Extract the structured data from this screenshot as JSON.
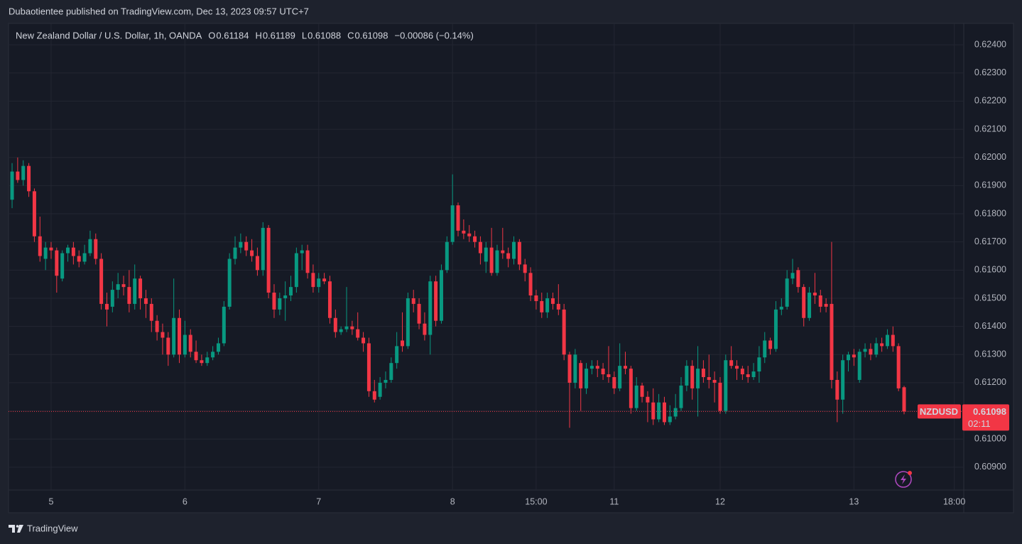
{
  "header": {
    "publisher": "Dubaotientee published on TradingView.com, Dec 13, 2023 09:57 UTC+7"
  },
  "footer": {
    "brand": "TradingView"
  },
  "chart_data": {
    "type": "candlestick",
    "title": "New Zealand Dollar / U.S. Dollar, 1h, OANDA",
    "legend_keys": [
      "O",
      "H",
      "L",
      "C"
    ],
    "change_label": "−0.00086 (−0.14%)",
    "symbol": "NZDUSD",
    "countdown": "02:11",
    "up_color": "#089981",
    "down_color": "#f23645",
    "grid": true,
    "ylim": [
      0.60819,
      0.62476
    ],
    "yticks": [
      {
        "value": 0.609,
        "label": "0.60900"
      },
      {
        "value": 0.61,
        "label": "0.61000"
      },
      {
        "value": 0.611,
        "label": "0.61100"
      },
      {
        "value": 0.612,
        "label": "0.61200"
      },
      {
        "value": 0.613,
        "label": "0.61300"
      },
      {
        "value": 0.614,
        "label": "0.61400"
      },
      {
        "value": 0.615,
        "label": "0.61500"
      },
      {
        "value": 0.616,
        "label": "0.61600"
      },
      {
        "value": 0.617,
        "label": "0.61700"
      },
      {
        "value": 0.618,
        "label": "0.61800"
      },
      {
        "value": 0.619,
        "label": "0.61900"
      },
      {
        "value": 0.62,
        "label": "0.62000"
      },
      {
        "value": 0.621,
        "label": "0.62100"
      },
      {
        "value": 0.622,
        "label": "0.62200"
      },
      {
        "value": 0.623,
        "label": "0.62300"
      },
      {
        "value": 0.624,
        "label": "0.62400"
      }
    ],
    "xlim": [
      -0.64,
      170.7
    ],
    "xticks": [
      {
        "value": 7,
        "label": "5"
      },
      {
        "value": 31,
        "label": "6"
      },
      {
        "value": 55,
        "label": "7"
      },
      {
        "value": 79,
        "label": "8"
      },
      {
        "value": 94,
        "label": "15:00"
      },
      {
        "value": 108,
        "label": "11"
      },
      {
        "value": 127,
        "label": "12"
      },
      {
        "value": 151,
        "label": "13"
      },
      {
        "value": 169,
        "label": "18:00"
      }
    ],
    "ohlc": [
      [
        0.6185,
        0.6198,
        0.6182,
        0.6195
      ],
      [
        0.6195,
        0.62,
        0.6191,
        0.6192
      ],
      [
        0.6192,
        0.6199,
        0.619,
        0.6197
      ],
      [
        0.6197,
        0.6198,
        0.6186,
        0.6188
      ],
      [
        0.6188,
        0.6189,
        0.617,
        0.6172
      ],
      [
        0.6172,
        0.6179,
        0.6163,
        0.6165
      ],
      [
        0.6164,
        0.617,
        0.616,
        0.6168
      ],
      [
        0.6168,
        0.617,
        0.6164,
        0.6167
      ],
      [
        0.6167,
        0.6168,
        0.6152,
        0.6158
      ],
      [
        0.6157,
        0.6167,
        0.6156,
        0.6166
      ],
      [
        0.6166,
        0.6169,
        0.6163,
        0.6168
      ],
      [
        0.6168,
        0.617,
        0.6162,
        0.6165
      ],
      [
        0.6165,
        0.6167,
        0.6161,
        0.6163
      ],
      [
        0.6163,
        0.6169,
        0.6162,
        0.6166
      ],
      [
        0.6166,
        0.6174,
        0.6165,
        0.6171
      ],
      [
        0.6171,
        0.6173,
        0.6162,
        0.6164
      ],
      [
        0.6164,
        0.6166,
        0.6146,
        0.6148
      ],
      [
        0.6148,
        0.6152,
        0.614,
        0.6146
      ],
      [
        0.6147,
        0.6156,
        0.6145,
        0.6153
      ],
      [
        0.6153,
        0.6159,
        0.615,
        0.6155
      ],
      [
        0.6155,
        0.6158,
        0.6151,
        0.6154
      ],
      [
        0.6154,
        0.616,
        0.6145,
        0.6148
      ],
      [
        0.6148,
        0.6162,
        0.6146,
        0.6157
      ],
      [
        0.6157,
        0.6158,
        0.6146,
        0.615
      ],
      [
        0.615,
        0.6153,
        0.6143,
        0.6148
      ],
      [
        0.6148,
        0.615,
        0.6138,
        0.6142
      ],
      [
        0.6142,
        0.6144,
        0.6135,
        0.6138
      ],
      [
        0.6138,
        0.6141,
        0.613,
        0.6136
      ],
      [
        0.6136,
        0.6138,
        0.6126,
        0.613
      ],
      [
        0.613,
        0.6157,
        0.6129,
        0.6143
      ],
      [
        0.6143,
        0.6146,
        0.6127,
        0.613
      ],
      [
        0.613,
        0.6142,
        0.6129,
        0.6137
      ],
      [
        0.6137,
        0.6139,
        0.6129,
        0.6131
      ],
      [
        0.6131,
        0.6135,
        0.6127,
        0.6128
      ],
      [
        0.6128,
        0.613,
        0.6126,
        0.6127
      ],
      [
        0.6127,
        0.6131,
        0.6126,
        0.6129
      ],
      [
        0.6129,
        0.6133,
        0.6128,
        0.6131
      ],
      [
        0.6131,
        0.6136,
        0.613,
        0.6134
      ],
      [
        0.6134,
        0.6149,
        0.6133,
        0.6147
      ],
      [
        0.6147,
        0.6166,
        0.6146,
        0.6164
      ],
      [
        0.6164,
        0.6172,
        0.6162,
        0.6168
      ],
      [
        0.6168,
        0.6173,
        0.6166,
        0.617
      ],
      [
        0.617,
        0.6172,
        0.6165,
        0.6167
      ],
      [
        0.6167,
        0.6171,
        0.6163,
        0.6165
      ],
      [
        0.6165,
        0.6168,
        0.6158,
        0.616
      ],
      [
        0.616,
        0.6177,
        0.6158,
        0.6175
      ],
      [
        0.6175,
        0.6176,
        0.615,
        0.6152
      ],
      [
        0.6152,
        0.6155,
        0.6143,
        0.6146
      ],
      [
        0.6146,
        0.6152,
        0.6144,
        0.615
      ],
      [
        0.615,
        0.6156,
        0.6142,
        0.6151
      ],
      [
        0.6151,
        0.6158,
        0.6149,
        0.6154
      ],
      [
        0.6154,
        0.6168,
        0.6152,
        0.6166
      ],
      [
        0.6166,
        0.6169,
        0.616,
        0.6167
      ],
      [
        0.6167,
        0.6169,
        0.6157,
        0.6159
      ],
      [
        0.6159,
        0.6162,
        0.6152,
        0.6154
      ],
      [
        0.6154,
        0.6159,
        0.6152,
        0.6157
      ],
      [
        0.6157,
        0.6159,
        0.6155,
        0.6156
      ],
      [
        0.6156,
        0.6158,
        0.6141,
        0.6143
      ],
      [
        0.6143,
        0.6146,
        0.6136,
        0.6138
      ],
      [
        0.6138,
        0.614,
        0.6137,
        0.6139
      ],
      [
        0.6139,
        0.6154,
        0.6138,
        0.614
      ],
      [
        0.614,
        0.6142,
        0.6137,
        0.6139
      ],
      [
        0.6139,
        0.6145,
        0.6135,
        0.6136
      ],
      [
        0.6136,
        0.6138,
        0.6131,
        0.6134
      ],
      [
        0.6134,
        0.6136,
        0.6115,
        0.6117
      ],
      [
        0.6117,
        0.6121,
        0.6113,
        0.6114
      ],
      [
        0.6115,
        0.6122,
        0.6114,
        0.612
      ],
      [
        0.612,
        0.6124,
        0.6118,
        0.6121
      ],
      [
        0.6121,
        0.6129,
        0.612,
        0.6127
      ],
      [
        0.6127,
        0.6138,
        0.6125,
        0.6133
      ],
      [
        0.6135,
        0.6145,
        0.6131,
        0.6133
      ],
      [
        0.6133,
        0.6152,
        0.6132,
        0.615
      ],
      [
        0.615,
        0.6153,
        0.6145,
        0.6148
      ],
      [
        0.6148,
        0.615,
        0.6139,
        0.6141
      ],
      [
        0.6141,
        0.6145,
        0.6135,
        0.6137
      ],
      [
        0.6137,
        0.6158,
        0.613,
        0.6156
      ],
      [
        0.6156,
        0.6158,
        0.614,
        0.6142
      ],
      [
        0.6142,
        0.6162,
        0.6141,
        0.616
      ],
      [
        0.616,
        0.6172,
        0.6159,
        0.617
      ],
      [
        0.617,
        0.6194,
        0.6169,
        0.6183
      ],
      [
        0.6183,
        0.6184,
        0.6172,
        0.6174
      ],
      [
        0.6174,
        0.6178,
        0.6171,
        0.6173
      ],
      [
        0.6173,
        0.6176,
        0.617,
        0.6172
      ],
      [
        0.6172,
        0.6174,
        0.6168,
        0.617
      ],
      [
        0.617,
        0.6172,
        0.6162,
        0.6166
      ],
      [
        0.6163,
        0.617,
        0.6159,
        0.6168
      ],
      [
        0.6168,
        0.6175,
        0.6158,
        0.6159
      ],
      [
        0.6159,
        0.6169,
        0.6158,
        0.6167
      ],
      [
        0.6167,
        0.6175,
        0.6164,
        0.6166
      ],
      [
        0.6166,
        0.6168,
        0.6161,
        0.6164
      ],
      [
        0.6164,
        0.6172,
        0.6162,
        0.617
      ],
      [
        0.617,
        0.6171,
        0.616,
        0.6162
      ],
      [
        0.6162,
        0.6164,
        0.6156,
        0.6159
      ],
      [
        0.6159,
        0.6161,
        0.6149,
        0.6151
      ],
      [
        0.6151,
        0.6153,
        0.6146,
        0.6149
      ],
      [
        0.6149,
        0.6152,
        0.6143,
        0.6145
      ],
      [
        0.6145,
        0.6152,
        0.6143,
        0.615
      ],
      [
        0.615,
        0.6152,
        0.6146,
        0.6148
      ],
      [
        0.6148,
        0.6155,
        0.6144,
        0.6146
      ],
      [
        0.6146,
        0.6148,
        0.6128,
        0.613
      ],
      [
        0.613,
        0.6131,
        0.6104,
        0.612
      ],
      [
        0.612,
        0.6132,
        0.6118,
        0.613
      ],
      [
        0.6127,
        0.6128,
        0.611,
        0.6118
      ],
      [
        0.6118,
        0.6127,
        0.6116,
        0.6125
      ],
      [
        0.6125,
        0.6128,
        0.6123,
        0.6126
      ],
      [
        0.6126,
        0.6128,
        0.6122,
        0.6125
      ],
      [
        0.6125,
        0.6127,
        0.6121,
        0.6123
      ],
      [
        0.6123,
        0.6133,
        0.612,
        0.6122
      ],
      [
        0.6122,
        0.6124,
        0.6116,
        0.6118
      ],
      [
        0.6118,
        0.6134,
        0.6117,
        0.6126
      ],
      [
        0.6126,
        0.6131,
        0.6123,
        0.6125
      ],
      [
        0.6125,
        0.6126,
        0.6109,
        0.6111
      ],
      [
        0.6111,
        0.6122,
        0.611,
        0.6119
      ],
      [
        0.6119,
        0.612,
        0.6113,
        0.6115
      ],
      [
        0.6115,
        0.6117,
        0.6106,
        0.6113
      ],
      [
        0.6113,
        0.6118,
        0.6105,
        0.6107
      ],
      [
        0.6107,
        0.6116,
        0.6106,
        0.6113
      ],
      [
        0.6113,
        0.6115,
        0.6105,
        0.6106
      ],
      [
        0.6106,
        0.6112,
        0.6105,
        0.6108
      ],
      [
        0.6108,
        0.6116,
        0.6107,
        0.6111
      ],
      [
        0.6111,
        0.6122,
        0.611,
        0.6119
      ],
      [
        0.6119,
        0.6128,
        0.6117,
        0.6126
      ],
      [
        0.6126,
        0.6128,
        0.6114,
        0.6118
      ],
      [
        0.6118,
        0.6133,
        0.6108,
        0.6125
      ],
      [
        0.6125,
        0.6128,
        0.612,
        0.6122
      ],
      [
        0.6122,
        0.613,
        0.6118,
        0.6121
      ],
      [
        0.6121,
        0.6124,
        0.6113,
        0.612
      ],
      [
        0.612,
        0.6122,
        0.6109,
        0.611
      ],
      [
        0.611,
        0.613,
        0.6109,
        0.6128
      ],
      [
        0.6128,
        0.6133,
        0.6125,
        0.6126
      ],
      [
        0.6126,
        0.6128,
        0.6121,
        0.6125
      ],
      [
        0.6125,
        0.6126,
        0.6121,
        0.6123
      ],
      [
        0.6123,
        0.6126,
        0.612,
        0.6122
      ],
      [
        0.6122,
        0.6127,
        0.6121,
        0.6124
      ],
      [
        0.6124,
        0.6133,
        0.612,
        0.6129
      ],
      [
        0.6129,
        0.6138,
        0.6127,
        0.6135
      ],
      [
        0.6135,
        0.6136,
        0.613,
        0.6132
      ],
      [
        0.6132,
        0.6149,
        0.6131,
        0.6146
      ],
      [
        0.6146,
        0.615,
        0.6144,
        0.6147
      ],
      [
        0.6147,
        0.616,
        0.6146,
        0.6157
      ],
      [
        0.6157,
        0.6164,
        0.6155,
        0.6159
      ],
      [
        0.616,
        0.6161,
        0.6152,
        0.6154
      ],
      [
        0.6154,
        0.6155,
        0.614,
        0.6143
      ],
      [
        0.6143,
        0.6154,
        0.6142,
        0.6152
      ],
      [
        0.6152,
        0.6159,
        0.6148,
        0.6151
      ],
      [
        0.6151,
        0.6153,
        0.6145,
        0.6147
      ],
      [
        0.6148,
        0.615,
        0.6145,
        0.6147
      ],
      [
        0.6148,
        0.617,
        0.6118,
        0.6121
      ],
      [
        0.6121,
        0.6124,
        0.6106,
        0.6114
      ],
      [
        0.6114,
        0.613,
        0.6109,
        0.6128
      ],
      [
        0.6128,
        0.6131,
        0.6124,
        0.613
      ],
      [
        0.613,
        0.6132,
        0.6126,
        0.6129
      ],
      [
        0.6121,
        0.6132,
        0.612,
        0.6131
      ],
      [
        0.6131,
        0.6134,
        0.6129,
        0.6132
      ],
      [
        0.6132,
        0.6134,
        0.6128,
        0.613
      ],
      [
        0.613,
        0.6136,
        0.6129,
        0.6134
      ],
      [
        0.6134,
        0.6136,
        0.6131,
        0.6133
      ],
      [
        0.6133,
        0.6139,
        0.6132,
        0.6137
      ],
      [
        0.6137,
        0.614,
        0.6131,
        0.6133
      ],
      [
        0.6133,
        0.6134,
        0.6117,
        0.6118
      ],
      [
        0.61184,
        0.61189,
        0.61088,
        0.61098
      ]
    ]
  }
}
